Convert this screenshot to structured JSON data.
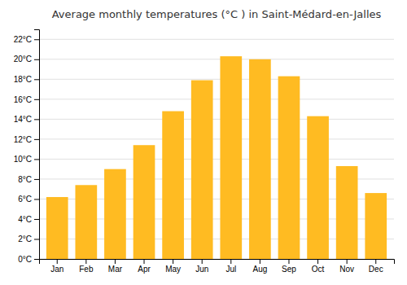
{
  "chart_data": {
    "type": "bar",
    "title": "Average monthly temperatures (°C ) in Saint-Médard-en-Jalles",
    "categories": [
      "Jan",
      "Feb",
      "Mar",
      "Apr",
      "May",
      "Jun",
      "Jul",
      "Aug",
      "Sep",
      "Oct",
      "Nov",
      "Dec"
    ],
    "values": [
      6.2,
      7.4,
      9.0,
      11.4,
      14.8,
      17.9,
      20.3,
      20.0,
      18.3,
      14.3,
      9.3,
      6.6
    ],
    "color": "#FFBB22",
    "ylim": [
      0,
      23
    ],
    "yticks": [
      {
        "value": 0,
        "label": "0°C"
      },
      {
        "value": 2,
        "label": "2°C"
      },
      {
        "value": 4,
        "label": "4°C"
      },
      {
        "value": 6,
        "label": "6°C"
      },
      {
        "value": 8,
        "label": "8°C"
      },
      {
        "value": 10,
        "label": "10°C"
      },
      {
        "value": 12,
        "label": "12°C"
      },
      {
        "value": 14,
        "label": "14°C"
      },
      {
        "value": 16,
        "label": "16°C"
      },
      {
        "value": 18,
        "label": "18°C"
      },
      {
        "value": 20,
        "label": "20°C"
      },
      {
        "value": 22,
        "label": "22°C"
      }
    ],
    "grid": true
  }
}
